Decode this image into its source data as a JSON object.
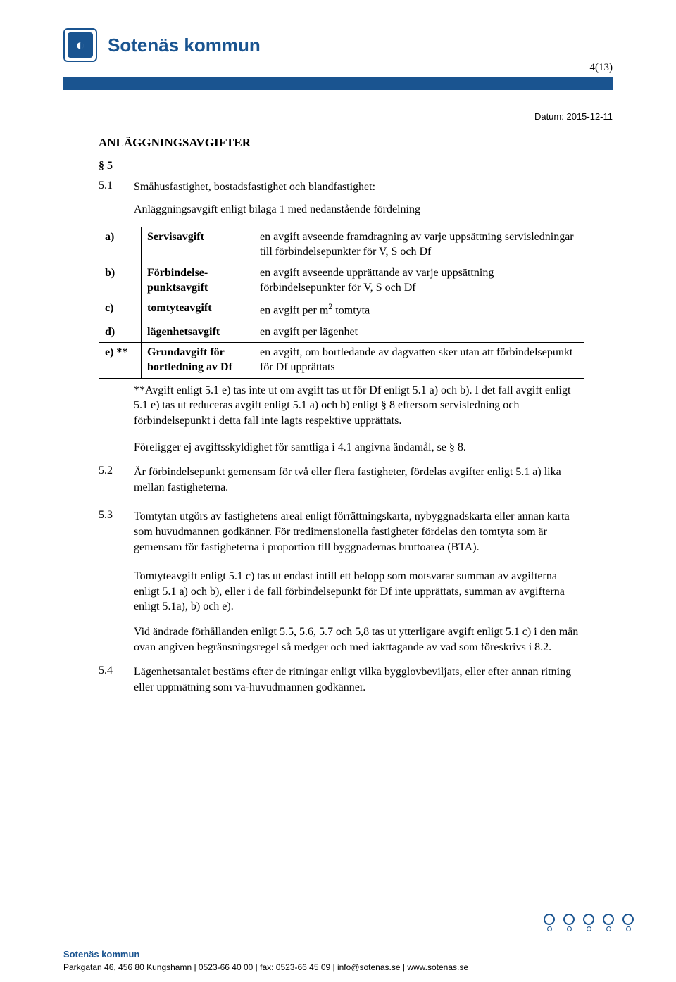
{
  "header": {
    "org_name": "Sotenäs kommun",
    "logo_glyph": "◐",
    "page_indicator": "4(13)"
  },
  "date_line": "Datum: 2015-12-11",
  "section": {
    "title": "ANLÄGGNINGSAVGIFTER",
    "p5": "§ 5",
    "p5_1_num": "5.1",
    "p5_1_lead": "Småhusfastighet, bostadsfastighet och blandfastighet:",
    "p5_1_sub": "Anläggningsavgift enligt bilaga 1 med nedanstående fördelning",
    "table": {
      "rows": [
        {
          "a": "a)",
          "b": "Servisavgift",
          "c": "en avgift avseende framdragning av varje uppsättning servisledningar till förbindelsepunkter för V, S och Df"
        },
        {
          "a": "b)",
          "b": "Förbindelse-punktsavgift",
          "c": "en avgift avseende upprättande av varje uppsättning förbindelsepunkter för V, S och Df"
        },
        {
          "a": "c)",
          "b": "tomtyteavgift",
          "c": "en avgift per m² tomtyta"
        },
        {
          "a": "d)",
          "b": "lägenhetsavgift",
          "c": "en avgift per lägenhet"
        },
        {
          "a": "e) **",
          "b": "Grundavgift för bortledning av Df",
          "c": "en avgift, om bortledande av dagvatten sker utan att förbindelsepunkt för Df upprättats"
        }
      ]
    },
    "footnote": "**Avgift enligt 5.1 e) tas inte ut om avgift tas ut för Df enligt 5.1 a) och b). I det fall avgift enligt 5.1 e) tas ut reduceras avgift enligt 5.1 a) och b) enligt § 8 eftersom servisledning och förbindelsepunkt i detta fall inte lagts respektive upprättats.",
    "after_footnote": "Föreligger ej avgiftsskyldighet för samtliga i 4.1 angivna ändamål, se § 8.",
    "p5_2_num": "5.2",
    "p5_2": "Är förbindelsepunkt gemensam för två eller flera fastigheter, fördelas avgifter enligt 5.1 a) lika mellan fastigheterna.",
    "p5_3_num": "5.3",
    "p5_3": "Tomtytan utgörs av fastighetens areal enligt förrättningskarta, nybyggnadskarta eller annan karta som huvudmannen godkänner. För tredimensionella fastigheter fördelas den tomtyta som är gemensam för fastigheterna i proportion till byggnadernas bruttoarea (BTA).",
    "p5_3_b": "Tomtyteavgift enligt 5.1 c) tas ut endast intill ett belopp som motsvarar summan av avgifterna enligt 5.1 a) och b), eller i de fall förbindelsepunkt för Df inte upprättats, summan av avgifterna enligt 5.1a), b) och e).",
    "p5_3_c": "Vid ändrade förhållanden enligt 5.5, 5.6, 5.7 och 5,8 tas ut ytterligare avgift enligt 5.1 c) i den mån ovan angiven begränsningsregel så medger och med iakttagande av vad som föreskrivs i 8.2.",
    "p5_4_num": "5.4",
    "p5_4": "Lägenhetsantalet bestäms efter de ritningar enligt vilka bygglovbeviljats, eller efter annan ritning eller uppmätning som va-huvudmannen godkänner."
  },
  "footer": {
    "org": "Sotenäs kommun",
    "line": "Parkgatan 46, 456 80 Kungshamn | 0523-66 40 00 | fax: 0523-66 45 09 | info@sotenas.se | www.sotenas.se"
  },
  "colors": {
    "brand": "#1a5490",
    "text": "#000000",
    "bg": "#ffffff"
  }
}
